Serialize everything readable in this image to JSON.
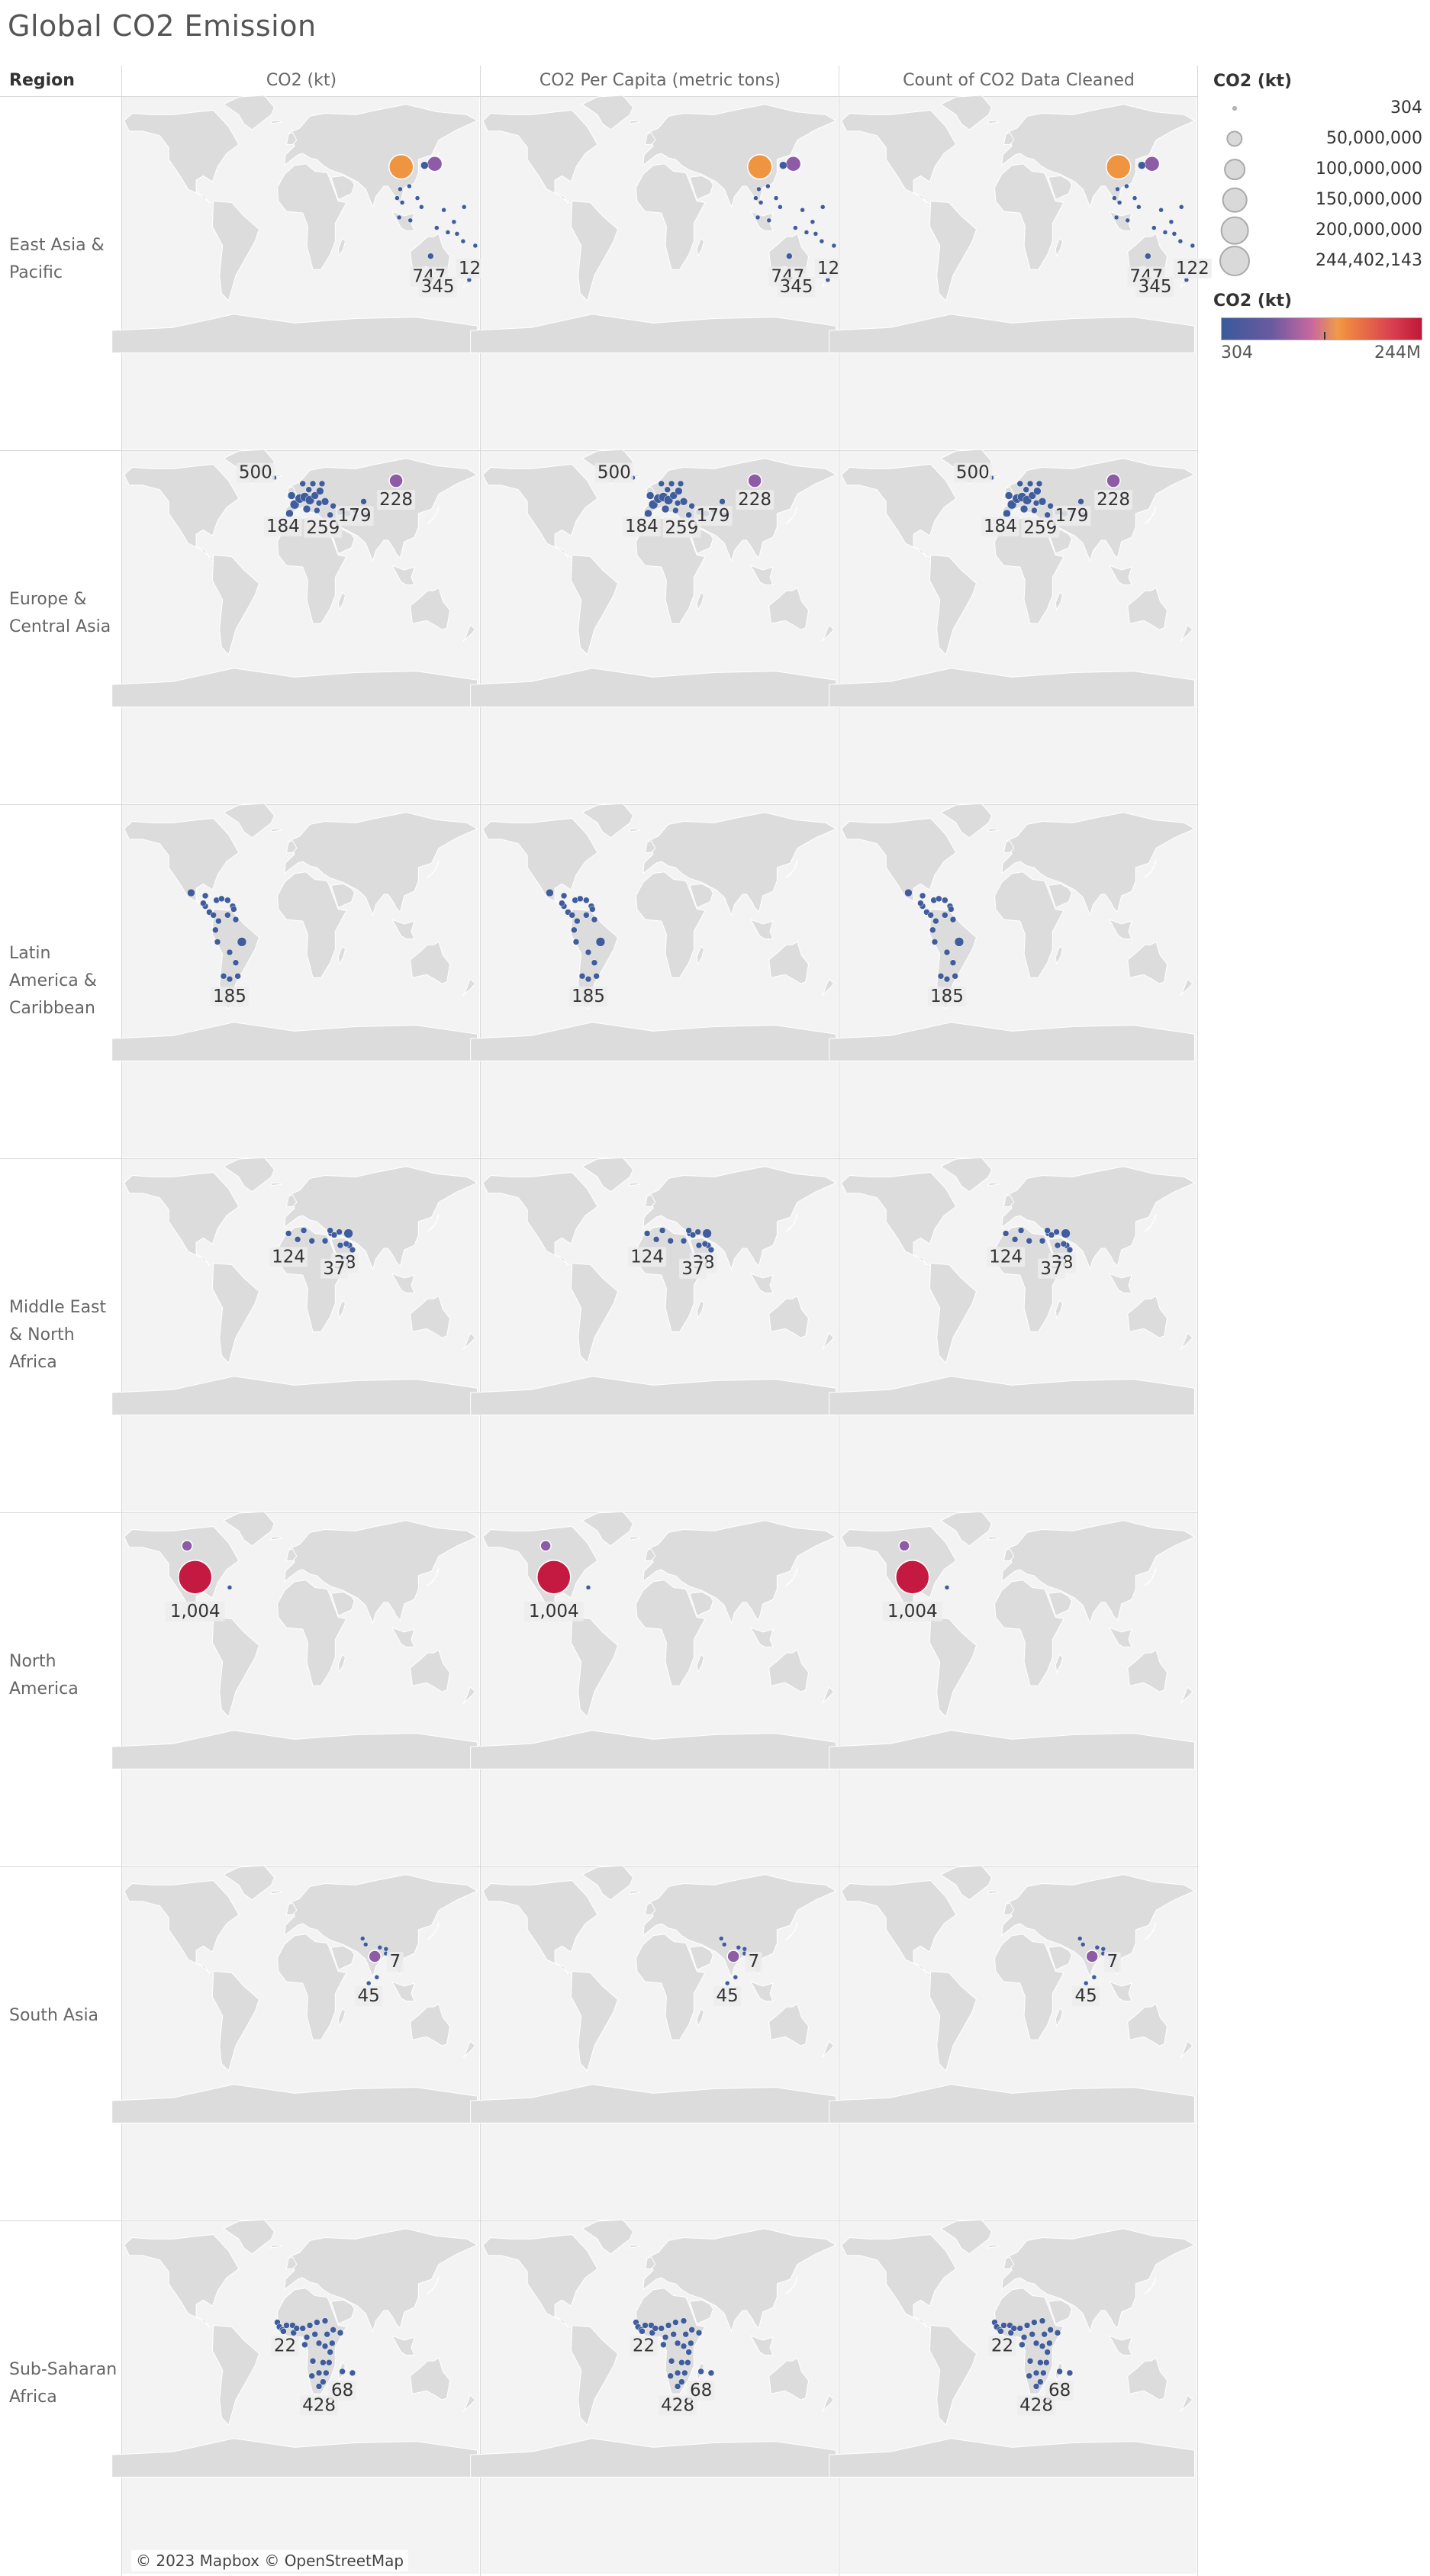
{
  "title": "Global CO2 Emission",
  "region_header": "Region",
  "columns": [
    "CO2 (kt)",
    "CO2 Per Capita (metric tons)",
    "Count of CO2 Data Cleaned"
  ],
  "regions": [
    "East Asia & Pacific",
    "Europe & Central Asia",
    "Latin America & Caribbean",
    "Middle East & North Africa",
    "North America",
    "South Asia",
    "Sub-Saharan Africa"
  ],
  "attribution": "© 2023 Mapbox © OpenStreetMap",
  "legend": {
    "size_title": "CO2 (kt)",
    "size_entries": [
      "304",
      "50,000,000",
      "100,000,000",
      "150,000,000",
      "200,000,000",
      "244,402,143"
    ],
    "size_values": [
      304,
      50000000,
      100000000,
      150000000,
      200000000,
      244402143
    ],
    "color_title": "CO2 (kt)",
    "color_min": "304",
    "color_max": "244M",
    "color_stops": [
      "#3a5a9a",
      "#6a5aa0",
      "#c868a0",
      "#f09a48",
      "#d84050",
      "#c01838"
    ]
  },
  "colors": {
    "low": "#3f5c9c",
    "mid": "#8e5ca6",
    "high_mid": "#ef9440",
    "max": "#c41a42",
    "map_land": "#dcdcdc",
    "map_water": "#f3f3f3"
  },
  "chart_data": {
    "type": "symbol map",
    "rows": "Region",
    "columns": [
      "CO2 (kt)",
      "CO2 Per Capita (metric tons)",
      "Count of CO2 Data Cleaned"
    ],
    "size_measure": "CO2 (kt)",
    "color_measure": "CO2 (kt)",
    "region_labels": [
      {
        "region": "East Asia & Pacific",
        "labels": [
          "747",
          "345",
          "122"
        ]
      },
      {
        "region": "Europe & Central Asia",
        "labels": [
          "500",
          "184",
          "259",
          "179",
          "228"
        ]
      },
      {
        "region": "Latin America & Caribbean",
        "labels": [
          "185"
        ]
      },
      {
        "region": "Middle East & North Africa",
        "labels": [
          "124",
          "38",
          "37"
        ]
      },
      {
        "region": "North America",
        "labels": [
          "1,004"
        ]
      },
      {
        "region": "South Asia",
        "labels": [
          "7",
          "45"
        ]
      },
      {
        "region": "Sub-Saharan Africa",
        "labels": [
          "22",
          "428",
          "68"
        ]
      }
    ],
    "points": [
      {
        "region": "East Asia & Pacific",
        "lon": 105,
        "lat": 35,
        "co2_kt": 190000000,
        "tier": "high_mid"
      },
      {
        "region": "East Asia & Pacific",
        "lon": 138,
        "lat": 37,
        "co2_kt": 60000000,
        "tier": "mid"
      },
      {
        "region": "East Asia & Pacific",
        "lon": 128,
        "lat": 36,
        "co2_kt": 20000000,
        "tier": "low"
      },
      {
        "region": "East Asia & Pacific",
        "lon": 134,
        "lat": -25,
        "co2_kt": 18000000,
        "tier": "low"
      },
      {
        "region": "East Asia & Pacific",
        "lon": 172,
        "lat": -41,
        "co2_kt": 2000000,
        "tier": "low"
      },
      {
        "region": "Europe & Central Asia",
        "lon": 100,
        "lat": 62,
        "co2_kt": 75000000,
        "tier": "mid"
      },
      {
        "region": "Europe & Central Asia",
        "lon": 10,
        "lat": 51,
        "co2_kt": 40000000,
        "tier": "low"
      },
      {
        "region": "Latin America & Caribbean",
        "lon": -102,
        "lat": 23,
        "co2_kt": 20000000,
        "tier": "low"
      },
      {
        "region": "Latin America & Caribbean",
        "lon": -52,
        "lat": -10,
        "co2_kt": 18000000,
        "tier": "low"
      },
      {
        "region": "Middle East & North Africa",
        "lon": 53,
        "lat": 32,
        "co2_kt": 22000000,
        "tier": "low"
      },
      {
        "region": "North America",
        "lon": -98,
        "lat": 39,
        "co2_kt": 244402143,
        "tier": "max"
      },
      {
        "region": "North America",
        "lon": -106,
        "lat": 60,
        "co2_kt": 22000000,
        "tier": "mid"
      },
      {
        "region": "South Asia",
        "lon": 79,
        "lat": 22,
        "co2_kt": 50000000,
        "tier": "mid"
      },
      {
        "region": "Sub-Saharan Africa",
        "lon": 24,
        "lat": -29,
        "co2_kt": 14000000,
        "tier": "low"
      }
    ]
  }
}
